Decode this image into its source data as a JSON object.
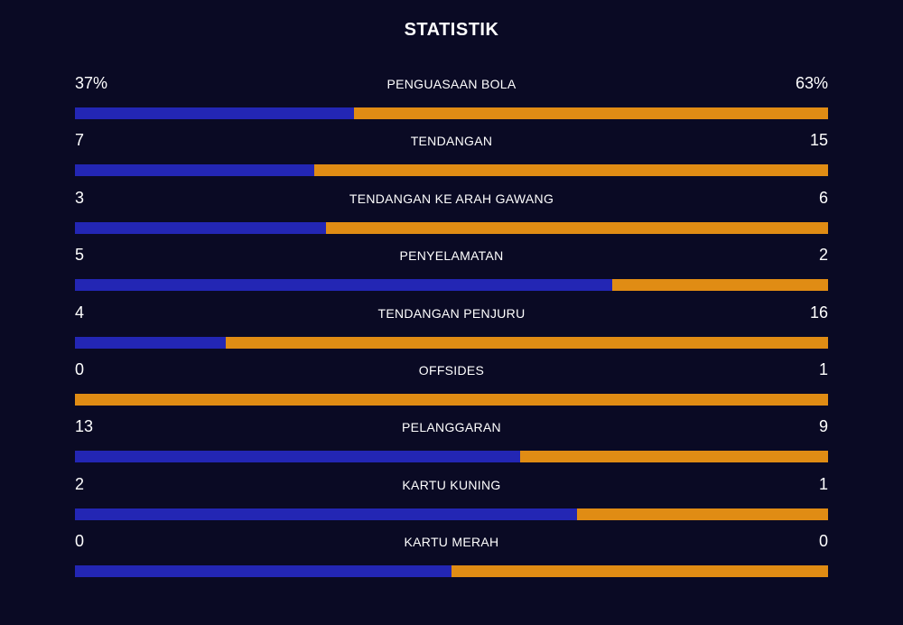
{
  "header": {
    "title": "STATISTIK"
  },
  "colors": {
    "background": "#0a0a24",
    "home": "#2326b4",
    "away": "#e08c14"
  },
  "stats": [
    {
      "label": "PENGUASAAN BOLA",
      "home": "37%",
      "away": "63%",
      "home_share": 0.37
    },
    {
      "label": "TENDANGAN",
      "home": "7",
      "away": "15",
      "home_share": 0.318
    },
    {
      "label": "TENDANGAN KE ARAH GAWANG",
      "home": "3",
      "away": "6",
      "home_share": 0.333
    },
    {
      "label": "PENYELAMATAN",
      "home": "5",
      "away": "2",
      "home_share": 0.714
    },
    {
      "label": "TENDANGAN PENJURU",
      "home": "4",
      "away": "16",
      "home_share": 0.2
    },
    {
      "label": "OFFSIDES",
      "home": "0",
      "away": "1",
      "home_share": 0.0
    },
    {
      "label": "PELANGGARAN",
      "home": "13",
      "away": "9",
      "home_share": 0.591
    },
    {
      "label": "KARTU KUNING",
      "home": "2",
      "away": "1",
      "home_share": 0.667
    },
    {
      "label": "KARTU MERAH",
      "home": "0",
      "away": "0",
      "home_share": 0.5
    }
  ]
}
